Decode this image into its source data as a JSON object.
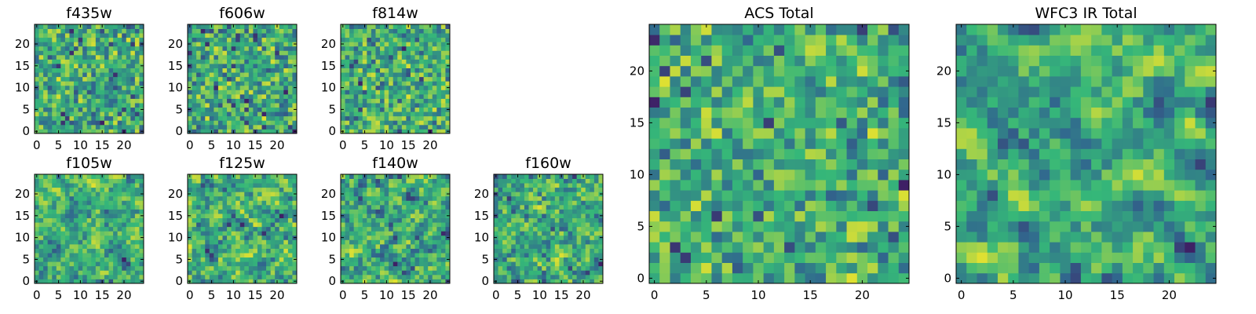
{
  "figure": {
    "colormap": "viridis",
    "colormap_stops": [
      "#440154",
      "#31688e",
      "#35b779",
      "#fde725"
    ],
    "cell_boundary": "none"
  },
  "chart_data": [
    {
      "type": "heatmap",
      "id": "f435w",
      "title": "f435w",
      "size": 25,
      "seed": 11,
      "smooth": 0,
      "xticks": [
        0,
        5,
        10,
        15,
        20
      ],
      "yticks": [
        0,
        5,
        10,
        15,
        20
      ],
      "xlim": [
        -0.5,
        24.5
      ],
      "ylim": [
        -0.5,
        24.5
      ]
    },
    {
      "type": "heatmap",
      "id": "f606w",
      "title": "f606w",
      "size": 25,
      "seed": 23,
      "smooth": 0,
      "xticks": [
        0,
        5,
        10,
        15,
        20
      ],
      "yticks": [
        0,
        5,
        10,
        15,
        20
      ],
      "xlim": [
        -0.5,
        24.5
      ],
      "ylim": [
        -0.5,
        24.5
      ]
    },
    {
      "type": "heatmap",
      "id": "f814w",
      "title": "f814w",
      "size": 25,
      "seed": 37,
      "smooth": 0,
      "xticks": [
        0,
        5,
        10,
        15,
        20
      ],
      "yticks": [
        0,
        5,
        10,
        15,
        20
      ],
      "xlim": [
        -0.5,
        24.5
      ],
      "ylim": [
        -0.5,
        24.5
      ]
    },
    {
      "type": "heatmap",
      "id": "f105w",
      "title": "f105w",
      "size": 25,
      "seed": 41,
      "smooth": 1,
      "xticks": [
        0,
        5,
        10,
        15,
        20
      ],
      "yticks": [
        0,
        5,
        10,
        15,
        20
      ],
      "xlim": [
        -0.5,
        24.5
      ],
      "ylim": [
        -0.5,
        24.5
      ]
    },
    {
      "type": "heatmap",
      "id": "f125w",
      "title": "f125w",
      "size": 25,
      "seed": 53,
      "smooth": 1,
      "xticks": [
        0,
        5,
        10,
        15,
        20
      ],
      "yticks": [
        0,
        5,
        10,
        15,
        20
      ],
      "xlim": [
        -0.5,
        24.5
      ],
      "ylim": [
        -0.5,
        24.5
      ]
    },
    {
      "type": "heatmap",
      "id": "f140w",
      "title": "f140w",
      "size": 25,
      "seed": 67,
      "smooth": 1,
      "xticks": [
        0,
        5,
        10,
        15,
        20
      ],
      "yticks": [
        0,
        5,
        10,
        15,
        20
      ],
      "xlim": [
        -0.5,
        24.5
      ],
      "ylim": [
        -0.5,
        24.5
      ]
    },
    {
      "type": "heatmap",
      "id": "f160w",
      "title": "f160w",
      "size": 25,
      "seed": 79,
      "smooth": 1,
      "xticks": [
        0,
        5,
        10,
        15,
        20
      ],
      "yticks": [
        0,
        5,
        10,
        15,
        20
      ],
      "xlim": [
        -0.5,
        24.5
      ],
      "ylim": [
        -0.5,
        24.5
      ]
    },
    {
      "type": "heatmap",
      "id": "acs-total",
      "title": "ACS Total",
      "size": 25,
      "seed": 83,
      "smooth": 0,
      "xticks": [
        0,
        5,
        10,
        15,
        20
      ],
      "yticks": [
        0,
        5,
        10,
        15,
        20
      ],
      "xlim": [
        -0.5,
        24.5
      ],
      "ylim": [
        -0.5,
        24.5
      ]
    },
    {
      "type": "heatmap",
      "id": "wfc3-ir-total",
      "title": "WFC3 IR Total",
      "size": 25,
      "seed": 97,
      "smooth": 2,
      "xticks": [
        0,
        5,
        10,
        15,
        20
      ],
      "yticks": [
        0,
        5,
        10,
        15,
        20
      ],
      "xlim": [
        -0.5,
        24.5
      ],
      "ylim": [
        -0.5,
        24.5
      ]
    }
  ]
}
